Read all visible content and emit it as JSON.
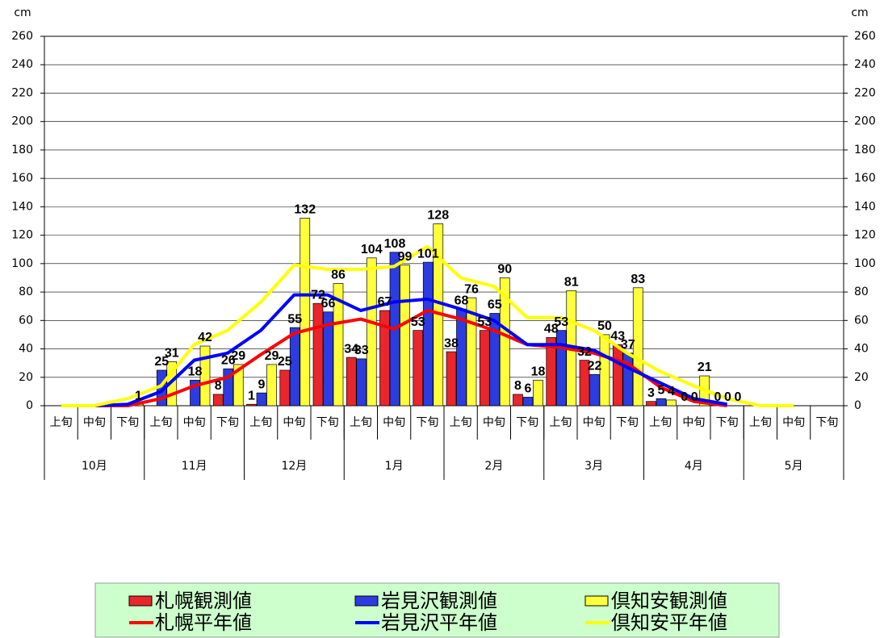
{
  "chart_data": {
    "type": "bar",
    "y_label": "cm",
    "y2_label": "cm",
    "categories": [
      "上旬",
      "中旬",
      "下旬",
      "上旬",
      "中旬",
      "下旬",
      "上旬",
      "中旬",
      "下旬",
      "上旬",
      "中旬",
      "下旬",
      "上旬",
      "中旬",
      "下旬",
      "上旬",
      "中旬",
      "下旬",
      "上旬",
      "中旬",
      "下旬",
      "上旬",
      "中旬",
      "下旬"
    ],
    "groups": [
      "10月",
      "11月",
      "12月",
      "1月",
      "2月",
      "3月",
      "4月",
      "5月"
    ],
    "ylim": [
      0,
      260
    ],
    "yticks": [
      0,
      20,
      40,
      60,
      80,
      100,
      120,
      140,
      160,
      180,
      200,
      220,
      240,
      260
    ],
    "y2lim": [
      0,
      260
    ],
    "y2ticks": [
      0,
      20,
      40,
      60,
      80,
      100,
      120,
      140,
      160,
      180,
      200,
      220,
      240,
      260
    ],
    "grid": true,
    "series": [
      {
        "name": "札幌観測値",
        "type": "bar",
        "color": "#e8262b",
        "values": [
          null,
          null,
          null,
          null,
          null,
          8,
          1,
          25,
          72,
          34,
          67,
          53,
          38,
          53,
          8,
          48,
          32,
          43,
          3,
          0,
          0,
          null,
          null,
          null
        ]
      },
      {
        "name": "岩見沢観測値",
        "type": "bar",
        "color": "#2c3ce0",
        "values": [
          null,
          null,
          null,
          25,
          18,
          26,
          9,
          55,
          66,
          33,
          108,
          101,
          68,
          65,
          6,
          53,
          22,
          37,
          5,
          0,
          0,
          null,
          null,
          null
        ]
      },
      {
        "name": "倶知安観測値",
        "type": "bar",
        "color": "#ffff3c",
        "values": [
          null,
          null,
          1,
          31,
          42,
          29,
          29,
          132,
          86,
          104,
          99,
          128,
          76,
          90,
          18,
          81,
          50,
          83,
          4,
          21,
          0,
          null,
          null,
          null
        ]
      },
      {
        "name": "札幌平年値",
        "type": "line",
        "color": "#ff0000",
        "values": [
          0,
          0,
          0,
          5,
          14,
          20,
          36,
          51,
          57,
          61,
          54,
          67,
          61,
          53,
          43,
          41,
          37,
          30,
          13,
          3,
          0,
          null,
          null,
          null
        ]
      },
      {
        "name": "岩見沢平年値",
        "type": "line",
        "color": "#0000ff",
        "values": [
          0,
          0,
          1,
          10,
          32,
          37,
          53,
          78,
          78,
          67,
          73,
          75,
          68,
          60,
          43,
          43,
          39,
          27,
          16,
          5,
          1,
          null,
          null,
          null
        ]
      },
      {
        "name": "倶知安平年値",
        "type": "line",
        "color": "#ffff00",
        "values": [
          0,
          0,
          5,
          14,
          43,
          53,
          73,
          99,
          96,
          96,
          98,
          112,
          90,
          84,
          62,
          62,
          53,
          37,
          24,
          14,
          5,
          0,
          0,
          null
        ]
      }
    ]
  }
}
